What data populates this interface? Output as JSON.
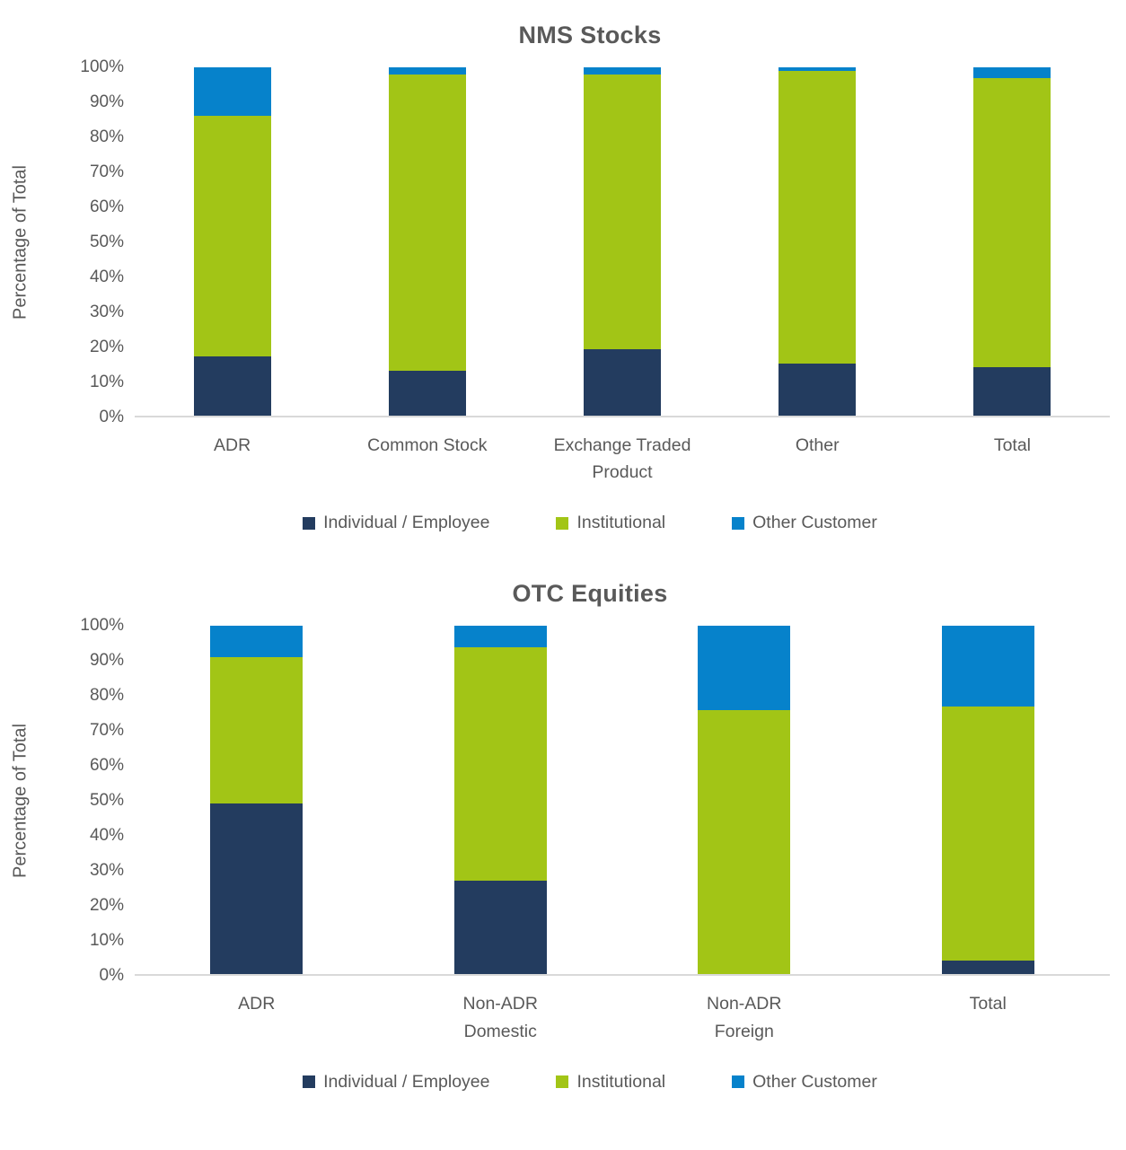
{
  "colors": {
    "text": "#595959",
    "axis_line": "#D9D9D9",
    "background": "#FFFFFF",
    "individual_employee": "#233C5F",
    "institutional": "#A2C516",
    "other_customer": "#0682CB"
  },
  "chart_data": [
    {
      "type": "bar",
      "stacked": true,
      "title": "NMS Stocks",
      "xlabel": "",
      "ylabel": "Percentage of Total",
      "ylim": [
        0,
        100
      ],
      "grid": false,
      "legend_position": "bottom",
      "yticks": [
        "0%",
        "10%",
        "20%",
        "30%",
        "40%",
        "50%",
        "60%",
        "70%",
        "80%",
        "90%",
        "100%"
      ],
      "ytick_values": [
        0,
        10,
        20,
        30,
        40,
        50,
        60,
        70,
        80,
        90,
        100
      ],
      "categories": [
        "ADR",
        "Common Stock",
        "Exchange Traded Product",
        "Other",
        "Total"
      ],
      "series": [
        {
          "name": "Individual / Employee",
          "color": "#233C5F",
          "values": [
            17,
            13,
            19,
            15,
            14
          ]
        },
        {
          "name": "Institutional",
          "color": "#A2C516",
          "values": [
            69,
            85,
            79,
            84,
            83
          ]
        },
        {
          "name": "Other Customer",
          "color": "#0682CB",
          "values": [
            14,
            2,
            2,
            1,
            3
          ]
        }
      ]
    },
    {
      "type": "bar",
      "stacked": true,
      "title": "OTC Equities",
      "xlabel": "",
      "ylabel": "Percentage of Total",
      "ylim": [
        0,
        100
      ],
      "grid": false,
      "legend_position": "bottom",
      "yticks": [
        "0%",
        "10%",
        "20%",
        "30%",
        "40%",
        "50%",
        "60%",
        "70%",
        "80%",
        "90%",
        "100%"
      ],
      "ytick_values": [
        0,
        10,
        20,
        30,
        40,
        50,
        60,
        70,
        80,
        90,
        100
      ],
      "categories": [
        "ADR",
        "Non-ADR Domestic",
        "Non-ADR Foreign",
        "Total"
      ],
      "series": [
        {
          "name": "Individual / Employee",
          "color": "#233C5F",
          "values": [
            49,
            27,
            0,
            4
          ]
        },
        {
          "name": "Institutional",
          "color": "#A2C516",
          "values": [
            42,
            67,
            76,
            73
          ]
        },
        {
          "name": "Other Customer",
          "color": "#0682CB",
          "values": [
            9,
            6,
            24,
            23
          ]
        }
      ]
    }
  ]
}
